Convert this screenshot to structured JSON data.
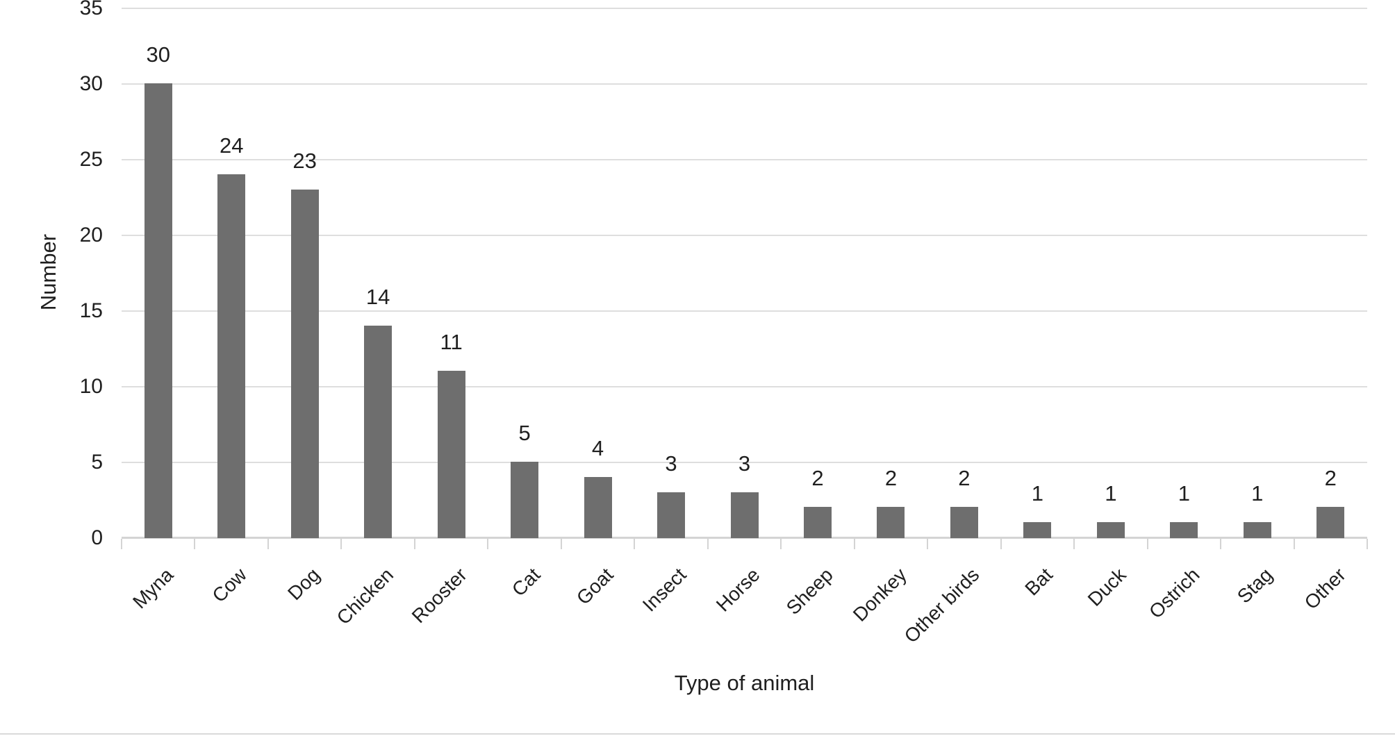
{
  "chart_data": {
    "type": "bar",
    "title": "",
    "xlabel": "Type of animal",
    "ylabel": "Number",
    "categories": [
      "Myna",
      "Cow",
      "Dog",
      "Chicken",
      "Rooster",
      "Cat",
      "Goat",
      "Insect",
      "Horse",
      "Sheep",
      "Donkey",
      "Other birds",
      "Bat",
      "Duck",
      "Ostrich",
      "Stag",
      "Other"
    ],
    "values": [
      30,
      24,
      23,
      14,
      11,
      5,
      4,
      3,
      3,
      2,
      2,
      2,
      1,
      1,
      1,
      1,
      2
    ],
    "ylim": [
      0,
      35
    ],
    "yticks": [
      0,
      5,
      10,
      15,
      20,
      25,
      30,
      35
    ],
    "grid": true,
    "data_labels_shown": true,
    "legend": "none",
    "colors": {
      "bar": "#6e6e6e",
      "gridline": "#dedede",
      "axis": "#d4d4d4",
      "text": "#1f1f1f",
      "page_border": "#d9d9d9"
    }
  }
}
